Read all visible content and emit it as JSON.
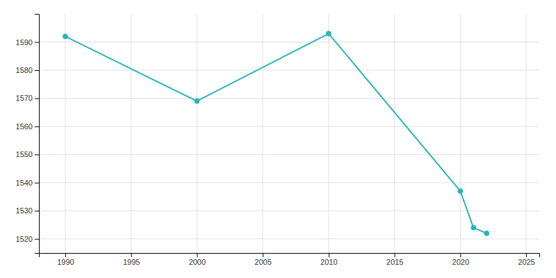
{
  "chart_data": {
    "type": "line",
    "x": [
      1990,
      2000,
      2010,
      2020,
      2021,
      2022
    ],
    "values": [
      1592,
      1569,
      1593,
      1537,
      1524,
      1522
    ],
    "color": "#2ab5b5",
    "marker": "circle",
    "xlim": [
      1988,
      2026
    ],
    "ylim": [
      1515,
      1600
    ],
    "xticks": [
      1990,
      1995,
      2000,
      2005,
      2010,
      2015,
      2020,
      2025
    ],
    "yticks": [
      1520,
      1530,
      1540,
      1550,
      1560,
      1570,
      1580,
      1590
    ],
    "grid": true
  }
}
